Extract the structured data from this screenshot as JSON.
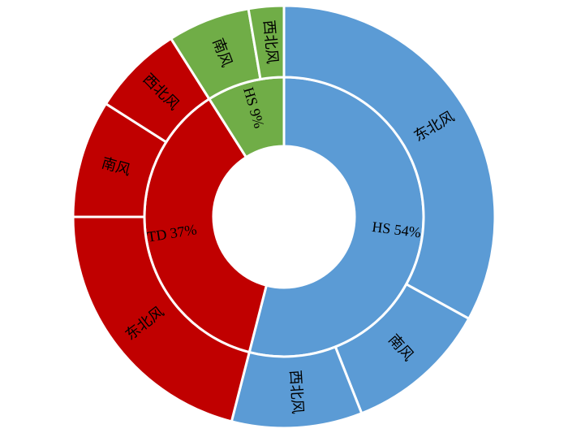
{
  "chart_data": {
    "type": "sunburst",
    "inner": {
      "value_labels": [
        "HS 54%",
        "TD 37%",
        "HS 9%"
      ],
      "values": [
        54,
        37,
        9
      ],
      "colors": [
        "#5b9bd5",
        "#c00000",
        "#70ad47"
      ]
    },
    "outer": [
      {
        "categories": [
          "东北风",
          "南风",
          "西北风"
        ],
        "values": [
          33,
          11,
          10
        ]
      },
      {
        "categories": [
          "东北风",
          "南风",
          "西北风"
        ],
        "values": [
          21,
          9,
          7
        ]
      },
      {
        "categories": [
          "南风",
          "西北风"
        ],
        "values": [
          6.3,
          2.7
        ]
      }
    ]
  }
}
